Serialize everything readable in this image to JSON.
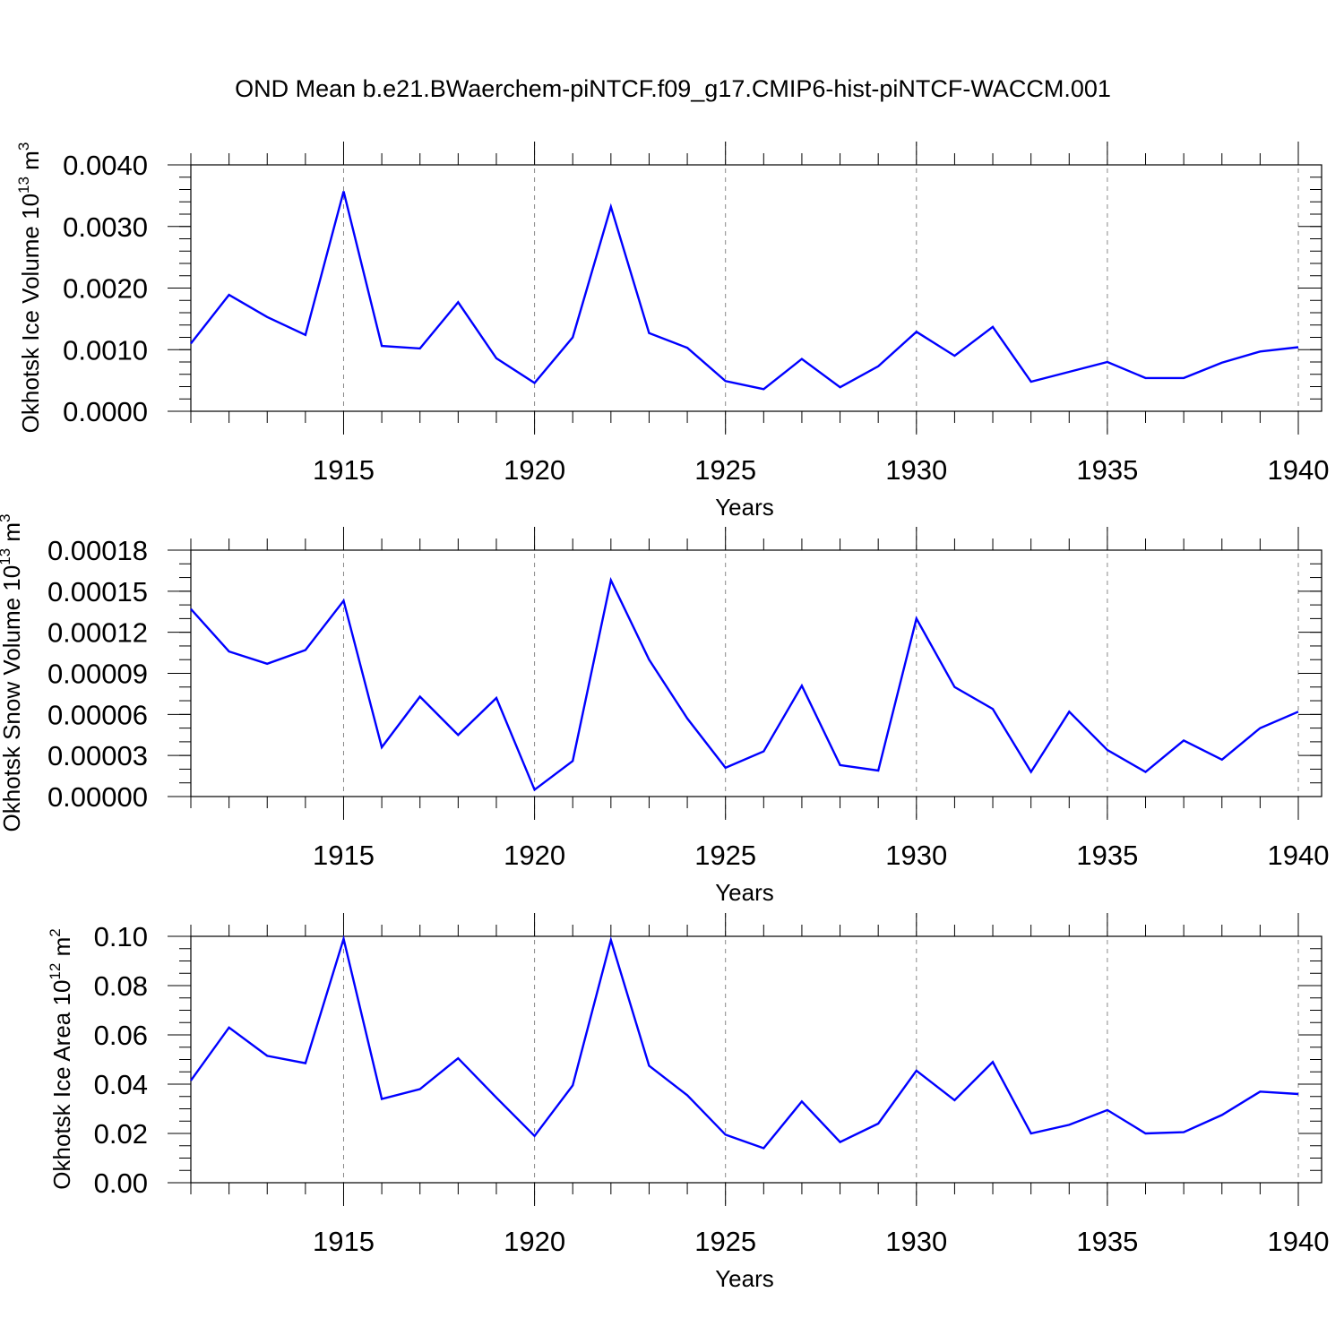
{
  "title": "OND Mean b.e21.BWaerchem-piNTCF.f09_g17.CMIP6-hist-piNTCF-WACCM.001",
  "colors": {
    "line": "#0000ff",
    "axis": "#000000",
    "grid": "#888888"
  },
  "chart_data": [
    {
      "type": "line",
      "ylabel_main": "Okhotsk Ice Volume 10",
      "ylabel_sup": "13",
      "ylabel_unit": "m",
      "ylabel_unit_sup": "3",
      "xlabel": "Years",
      "xlim": [
        1911,
        1940
      ],
      "ylim": [
        0,
        0.004
      ],
      "x_ticks": [
        "1915",
        "1920",
        "1925",
        "1930",
        "1935",
        "1940"
      ],
      "y_ticks": [
        "0.0000",
        "0.0010",
        "0.0020",
        "0.0030",
        "0.0040"
      ],
      "y_tick_values": [
        0,
        0.001,
        0.002,
        0.003,
        0.004
      ],
      "y_minor_step": 0.0002,
      "grid": "vertical dashed at major x ticks",
      "x": [
        1911,
        1912,
        1913,
        1914,
        1915,
        1916,
        1917,
        1918,
        1919,
        1920,
        1921,
        1922,
        1923,
        1924,
        1925,
        1926,
        1927,
        1928,
        1929,
        1930,
        1931,
        1932,
        1933,
        1934,
        1935,
        1936,
        1937,
        1938,
        1939,
        1940
      ],
      "values": [
        0.0011,
        0.00189,
        0.00153,
        0.00124,
        0.00357,
        0.00106,
        0.00102,
        0.00177,
        0.00086,
        0.00046,
        0.0012,
        0.00332,
        0.00127,
        0.00103,
        0.00049,
        0.00036,
        0.00085,
        0.00039,
        0.00073,
        0.00129,
        0.0009,
        0.00137,
        0.00048,
        0.00064,
        0.0008,
        0.00054,
        0.00054,
        0.00079,
        0.00097,
        0.00104
      ]
    },
    {
      "type": "line",
      "ylabel_main": "Okhotsk Snow Volume 10",
      "ylabel_sup": "13",
      "ylabel_unit": "m",
      "ylabel_unit_sup": "3",
      "xlabel": "Years",
      "xlim": [
        1911,
        1940
      ],
      "ylim": [
        0,
        0.00018
      ],
      "x_ticks": [
        "1915",
        "1920",
        "1925",
        "1930",
        "1935",
        "1940"
      ],
      "y_ticks": [
        "0.00000",
        "0.00003",
        "0.00006",
        "0.00009",
        "0.00012",
        "0.00015",
        "0.00018"
      ],
      "y_tick_values": [
        0,
        3e-05,
        6e-05,
        9e-05,
        0.00012,
        0.00015,
        0.00018
      ],
      "y_minor_step": 1e-05,
      "grid": "vertical dashed at major x ticks",
      "x": [
        1911,
        1912,
        1913,
        1914,
        1915,
        1916,
        1917,
        1918,
        1919,
        1920,
        1921,
        1922,
        1923,
        1924,
        1925,
        1926,
        1927,
        1928,
        1929,
        1930,
        1931,
        1932,
        1933,
        1934,
        1935,
        1936,
        1937,
        1938,
        1939,
        1940
      ],
      "values": [
        0.000137,
        0.000106,
        9.7e-05,
        0.000107,
        0.000143,
        3.6e-05,
        7.3e-05,
        4.5e-05,
        7.2e-05,
        5e-06,
        2.6e-05,
        0.000158,
        0.0001,
        5.7e-05,
        2.1e-05,
        3.3e-05,
        8.1e-05,
        2.3e-05,
        1.9e-05,
        0.00013,
        8e-05,
        6.4e-05,
        1.8e-05,
        6.2e-05,
        3.4e-05,
        1.8e-05,
        4.1e-05,
        2.7e-05,
        5e-05,
        6.2e-05
      ]
    },
    {
      "type": "line",
      "ylabel_main": "Okhotsk Ice Area 10",
      "ylabel_sup": "12",
      "ylabel_unit": "m",
      "ylabel_unit_sup": "2",
      "xlabel": "Years",
      "xlim": [
        1911,
        1940
      ],
      "ylim": [
        0,
        0.1
      ],
      "x_ticks": [
        "1915",
        "1920",
        "1925",
        "1930",
        "1935",
        "1940"
      ],
      "y_ticks": [
        "0.00",
        "0.02",
        "0.04",
        "0.06",
        "0.08",
        "0.10"
      ],
      "y_tick_values": [
        0,
        0.02,
        0.04,
        0.06,
        0.08,
        0.1
      ],
      "y_minor_step": 0.005,
      "grid": "vertical dashed at major x ticks",
      "x": [
        1911,
        1912,
        1913,
        1914,
        1915,
        1916,
        1917,
        1918,
        1919,
        1920,
        1921,
        1922,
        1923,
        1924,
        1925,
        1926,
        1927,
        1928,
        1929,
        1930,
        1931,
        1932,
        1933,
        1934,
        1935,
        1936,
        1937,
        1938,
        1939,
        1940
      ],
      "values": [
        0.0415,
        0.063,
        0.0515,
        0.0485,
        0.099,
        0.034,
        0.038,
        0.0505,
        0.0345,
        0.019,
        0.0395,
        0.0985,
        0.0475,
        0.0355,
        0.0195,
        0.014,
        0.033,
        0.0165,
        0.024,
        0.0455,
        0.0335,
        0.049,
        0.02,
        0.0235,
        0.0295,
        0.02,
        0.0205,
        0.0275,
        0.037,
        0.036
      ]
    }
  ]
}
